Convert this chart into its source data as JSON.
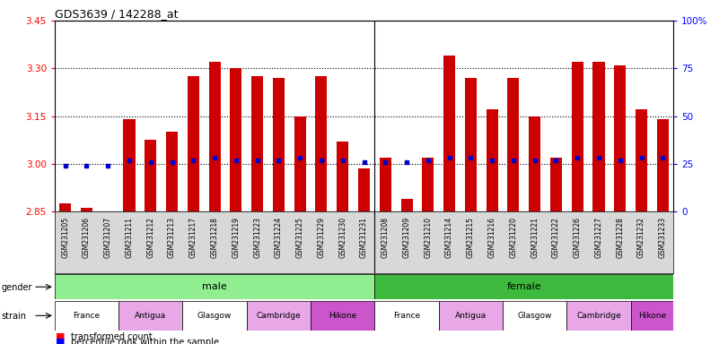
{
  "title": "GDS3639 / 142288_at",
  "samples": [
    "GSM231205",
    "GSM231206",
    "GSM231207",
    "GSM231211",
    "GSM231212",
    "GSM231213",
    "GSM231217",
    "GSM231218",
    "GSM231219",
    "GSM231223",
    "GSM231224",
    "GSM231225",
    "GSM231229",
    "GSM231230",
    "GSM231231",
    "GSM231208",
    "GSM231209",
    "GSM231210",
    "GSM231214",
    "GSM231215",
    "GSM231216",
    "GSM231220",
    "GSM231221",
    "GSM231222",
    "GSM231226",
    "GSM231227",
    "GSM231228",
    "GSM231232",
    "GSM231233"
  ],
  "bar_values": [
    2.875,
    2.862,
    2.847,
    3.14,
    3.075,
    3.1,
    3.275,
    3.32,
    3.3,
    3.275,
    3.27,
    3.15,
    3.275,
    3.07,
    2.985,
    3.02,
    2.89,
    3.02,
    3.34,
    3.27,
    3.17,
    3.27,
    3.15,
    3.02,
    3.32,
    3.32,
    3.31,
    3.17,
    3.14
  ],
  "percentile_values": [
    24,
    24,
    24,
    27,
    26,
    26,
    27,
    28,
    27,
    27,
    27,
    28,
    27,
    27,
    26,
    26,
    26,
    27,
    28,
    28,
    27,
    27,
    27,
    27,
    28,
    28,
    27,
    28,
    28
  ],
  "bar_color": "#cc0000",
  "dot_color": "#0000cc",
  "ylim_left": [
    2.85,
    3.45
  ],
  "ylim_right": [
    0,
    100
  ],
  "yticks_left": [
    2.85,
    3.0,
    3.15,
    3.3,
    3.45
  ],
  "ytick_labels_right": [
    "0",
    "25",
    "50",
    "75",
    "100%"
  ],
  "yticks_right": [
    0,
    25,
    50,
    75,
    100
  ],
  "hline_values": [
    3.0,
    3.15,
    3.3
  ],
  "male_count": 15,
  "female_count": 14,
  "gender_color_male": "#90ee90",
  "gender_color_female": "#3dba3d",
  "strain_names": [
    "France",
    "Antigua",
    "Glasgow",
    "Cambridge",
    "Hikone"
  ],
  "strain_colors_male": [
    "#ffffff",
    "#e8a8e8",
    "#ffffff",
    "#e8a8e8",
    "#cc55cc"
  ],
  "strain_colors_female": [
    "#ffffff",
    "#e8a8e8",
    "#ffffff",
    "#e8a8e8",
    "#cc55cc"
  ],
  "samples_per_strain_male": [
    3,
    3,
    3,
    3,
    3
  ],
  "samples_per_strain_female": [
    3,
    3,
    3,
    3,
    2
  ],
  "bar_width": 0.55,
  "xtick_bg": "#d8d8d8",
  "chart_bg": "#ffffff"
}
